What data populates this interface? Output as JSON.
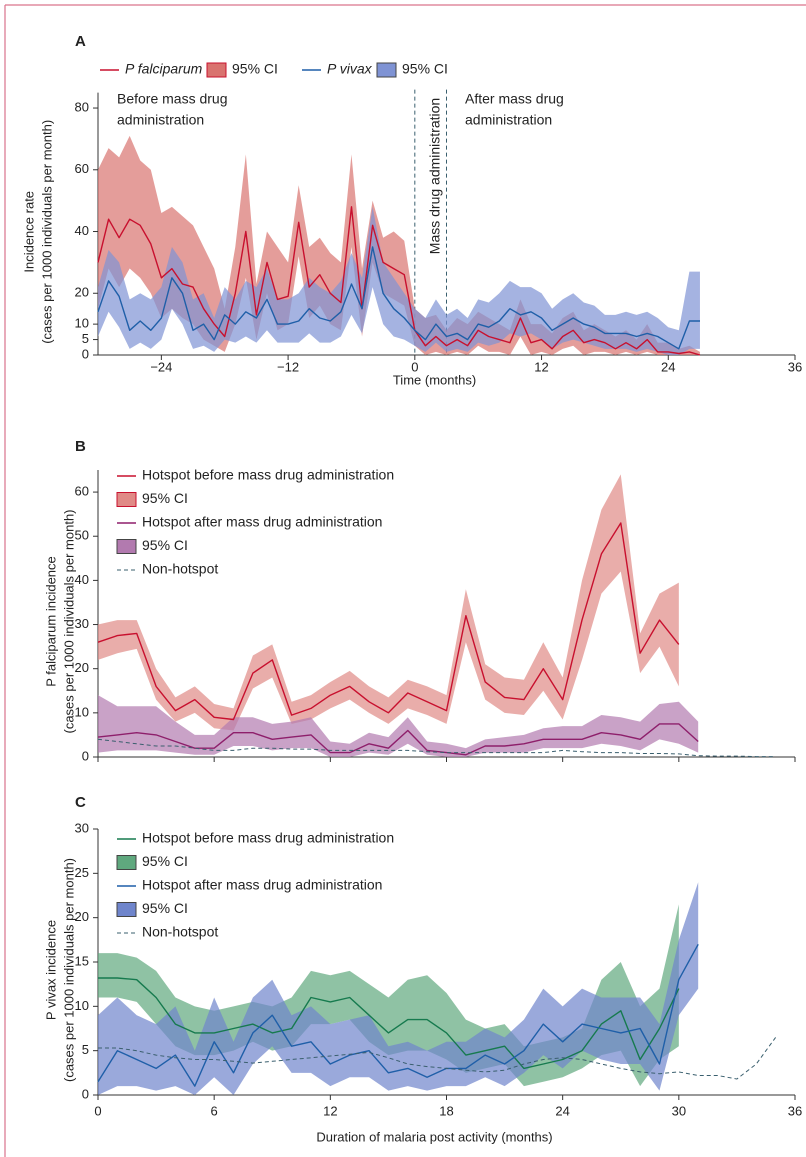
{
  "chart_data": [
    {
      "type": "line",
      "label": "A",
      "ylabel": [
        "Incidence rate",
        "(cases per 1000 individuals per month)"
      ],
      "xlabel": "Time (months)",
      "xlim": [
        -30,
        36
      ],
      "xticks": [
        {
          "value": -24,
          "label": "−24"
        },
        {
          "value": -12,
          "label": "−12"
        },
        0,
        12,
        24,
        36
      ],
      "ylim": [
        0,
        85
      ],
      "yticks": [
        0,
        5,
        10,
        20,
        40,
        60,
        80
      ],
      "legend": "row",
      "vlines": [
        0,
        3
      ],
      "annotations": [
        [
          "Before mass drug",
          "administration"
        ],
        [
          "After mass drug",
          "administration"
        ],
        [
          "Mass drug administration"
        ]
      ],
      "x": [
        -30,
        -29,
        -28,
        -27,
        -26,
        -25,
        -24,
        -23,
        -22,
        -21,
        -20,
        -19,
        -18,
        -17,
        -16,
        -15,
        -14,
        -13,
        -12,
        -11,
        -10,
        -9,
        -8,
        -7,
        -6,
        -5,
        -4,
        -3,
        -2,
        -1,
        0,
        1,
        2,
        3,
        4,
        5,
        6,
        7,
        8,
        9,
        10,
        11,
        12,
        13,
        14,
        15,
        16,
        17,
        18,
        19,
        20,
        21,
        22,
        23,
        24,
        25,
        26,
        27
      ],
      "series": [
        {
          "name": "P falciparum",
          "style": "line",
          "italic": true,
          "color": "#c8102e",
          "values": [
            30,
            44,
            38,
            44,
            42,
            36,
            25,
            28,
            23,
            22,
            15,
            10,
            6,
            20,
            40,
            13,
            30,
            18,
            19,
            43,
            22,
            26,
            20,
            17,
            48,
            15,
            42,
            30,
            28,
            26,
            8,
            3,
            6,
            3,
            5,
            3,
            8,
            6,
            5,
            4,
            12,
            4,
            5,
            2,
            6,
            8,
            4,
            5,
            4,
            2,
            4,
            2,
            5,
            1,
            1,
            0.5,
            1,
            0
          ]
        },
        {
          "name": "95% CI",
          "style": "band",
          "color": "#d9736f",
          "upper": [
            60,
            67,
            64,
            71,
            63,
            60,
            46,
            48,
            45,
            42,
            35,
            28,
            15,
            35,
            65,
            23,
            40,
            35,
            30,
            55,
            35,
            38,
            33,
            30,
            65,
            28,
            50,
            38,
            40,
            37,
            15,
            12,
            13,
            8,
            12,
            10,
            14,
            12,
            10,
            8,
            18,
            10,
            10,
            7,
            12,
            14,
            8,
            10,
            8,
            6,
            8,
            5,
            10,
            4,
            4,
            2,
            3,
            1
          ],
          "lower": [
            15,
            28,
            22,
            28,
            25,
            20,
            12,
            15,
            12,
            10,
            5,
            3,
            1,
            10,
            25,
            5,
            20,
            8,
            10,
            32,
            12,
            16,
            10,
            8,
            35,
            6,
            30,
            20,
            18,
            16,
            3,
            0,
            1,
            0,
            1,
            0,
            3,
            1,
            1,
            0,
            6,
            0,
            1,
            0,
            2,
            3,
            0,
            1,
            1,
            0,
            1,
            0,
            1,
            0,
            0,
            0,
            0,
            0
          ]
        },
        {
          "name": "P vivax",
          "style": "line",
          "italic": true,
          "color": "#1f5fa8",
          "values": [
            14,
            24,
            19,
            8,
            11,
            8,
            12,
            25,
            20,
            8,
            10,
            5,
            13,
            10,
            14,
            12,
            18,
            10,
            10,
            11,
            15,
            12,
            11,
            14,
            23,
            15,
            35,
            20,
            15,
            12,
            8,
            5,
            10,
            6,
            7,
            5,
            10,
            9,
            11,
            15,
            13,
            14,
            12,
            8,
            10,
            12,
            10,
            9,
            7,
            7,
            7,
            6,
            7,
            6,
            4,
            2,
            11,
            11
          ]
        },
        {
          "name": "95% CI",
          "style": "band",
          "color": "#7f93d4",
          "upper": [
            22,
            34,
            30,
            18,
            20,
            18,
            22,
            35,
            30,
            18,
            20,
            12,
            22,
            18,
            24,
            22,
            28,
            18,
            18,
            20,
            25,
            22,
            20,
            24,
            33,
            25,
            48,
            30,
            25,
            20,
            15,
            12,
            18,
            13,
            15,
            12,
            18,
            17,
            20,
            24,
            22,
            22,
            20,
            15,
            18,
            20,
            17,
            16,
            13,
            13,
            14,
            13,
            14,
            12,
            9,
            8,
            27,
            27
          ],
          "lower": [
            6,
            14,
            9,
            2,
            4,
            2,
            5,
            15,
            10,
            2,
            3,
            1,
            5,
            4,
            6,
            4,
            8,
            4,
            4,
            4,
            7,
            4,
            4,
            6,
            13,
            7,
            22,
            10,
            6,
            5,
            3,
            1,
            4,
            1,
            2,
            1,
            4,
            3,
            4,
            7,
            6,
            7,
            5,
            2,
            4,
            5,
            4,
            3,
            2,
            2,
            2,
            1,
            2,
            1,
            0,
            0,
            2,
            2
          ]
        }
      ]
    },
    {
      "type": "line",
      "label": "B",
      "ylabel": [
        "P falciparum incidence",
        "(cases per 1000 individuals per month)"
      ],
      "xlim": [
        0,
        36
      ],
      "xticks": [
        0,
        6,
        12,
        18,
        24,
        30,
        36
      ],
      "xtick_labels": false,
      "ylim": [
        0,
        65
      ],
      "yticks": [
        0,
        10,
        20,
        30,
        40,
        50,
        60
      ],
      "legend": "column",
      "x": [
        0,
        1,
        2,
        3,
        4,
        5,
        6,
        7,
        8,
        9,
        10,
        11,
        12,
        13,
        14,
        15,
        16,
        17,
        18,
        19,
        20,
        21,
        22,
        23,
        24,
        25,
        26,
        27,
        28,
        29,
        30,
        31,
        32,
        33,
        34,
        35
      ],
      "series": [
        {
          "name": "Hotspot before mass drug administration",
          "style": "line",
          "color": "#c8102e",
          "values": [
            26,
            27.5,
            28,
            16,
            10.5,
            13,
            9,
            8.5,
            19,
            22,
            9.5,
            11,
            14,
            16,
            12.5,
            10,
            14.5,
            12.5,
            10.5,
            32,
            17,
            13.5,
            13,
            20,
            13,
            31,
            46,
            53,
            23.5,
            31,
            25.5,
            null,
            null,
            null,
            null,
            null
          ]
        },
        {
          "name": "95% CI",
          "style": "band",
          "color": "#e08a86",
          "upper": [
            30,
            31,
            31,
            20,
            13.5,
            16,
            12,
            11,
            23,
            25.5,
            12.5,
            14,
            17,
            19.5,
            16,
            13.5,
            17.5,
            16,
            14,
            38,
            21,
            18,
            17.5,
            26,
            18,
            40,
            56,
            64,
            28,
            37,
            39.5,
            null,
            null,
            null,
            null,
            null
          ],
          "lower": [
            22,
            23.5,
            24.5,
            13,
            8,
            10,
            6.5,
            6,
            15.5,
            18,
            7.5,
            8.5,
            11,
            13,
            10,
            7.5,
            11,
            9.5,
            7.5,
            26,
            13,
            10,
            9.5,
            15,
            8.5,
            22,
            37,
            42,
            19,
            25,
            16,
            null,
            null,
            null,
            null,
            null
          ]
        },
        {
          "name": "Hotspot after mass drug administration",
          "style": "line",
          "color": "#8e1f6b",
          "values": [
            4.5,
            5,
            5.5,
            5,
            3.5,
            2,
            2,
            5.5,
            5.5,
            4,
            4.5,
            5,
            1,
            1,
            3,
            2,
            6,
            1.5,
            1,
            0.5,
            2.5,
            2.5,
            3,
            4,
            4,
            4,
            5.5,
            5,
            4,
            7.5,
            7.5,
            3.5,
            null,
            null,
            null,
            null
          ]
        },
        {
          "name": "95% CI",
          "style": "band",
          "color": "#b27aaf",
          "upper": [
            14,
            11.5,
            11.5,
            11.5,
            8,
            5,
            5,
            9,
            9,
            7.5,
            8,
            9,
            3.5,
            3,
            5.5,
            4.5,
            9,
            3.5,
            3,
            2,
            4,
            4.5,
            5,
            6.5,
            7,
            7,
            9.5,
            9,
            8,
            12,
            12.5,
            8,
            null,
            null,
            null,
            null
          ],
          "lower": [
            1,
            1.5,
            1.5,
            1.5,
            1,
            0.5,
            0.5,
            2.5,
            2.5,
            1.5,
            2,
            2,
            0,
            0,
            1,
            0.5,
            3,
            0.5,
            0,
            0,
            1,
            1,
            1,
            2,
            2,
            2,
            3,
            2.5,
            1.5,
            4,
            3,
            1,
            null,
            null,
            null,
            null
          ]
        },
        {
          "name": "Non-hotspot",
          "style": "dashed",
          "color": "#3a5f6e",
          "values": [
            4,
            3.5,
            3,
            2.5,
            2.5,
            2,
            1.5,
            1.5,
            2,
            2,
            1.8,
            1.8,
            1.5,
            1.5,
            1.5,
            1.5,
            1.5,
            1.2,
            1,
            1,
            1,
            1,
            1,
            1,
            1.5,
            1.2,
            1,
            1,
            0.8,
            0.8,
            0.7,
            0.3,
            0.2,
            0.2,
            0.1,
            0.1
          ]
        }
      ]
    },
    {
      "type": "line",
      "label": "C",
      "ylabel": [
        "P vivax incidence",
        "(cases per 1000 individuals per month)"
      ],
      "xlabel": "Duration of malaria post activity (months)",
      "xlim": [
        0,
        36
      ],
      "xticks": [
        0,
        6,
        12,
        18,
        24,
        30,
        36
      ],
      "ylim": [
        0,
        30
      ],
      "yticks": [
        0,
        5,
        10,
        15,
        20,
        25,
        30
      ],
      "legend": "column",
      "x": [
        0,
        1,
        2,
        3,
        4,
        5,
        6,
        7,
        8,
        9,
        10,
        11,
        12,
        13,
        14,
        15,
        16,
        17,
        18,
        19,
        20,
        21,
        22,
        23,
        24,
        25,
        26,
        27,
        28,
        29,
        30,
        31,
        32,
        33,
        34,
        35
      ],
      "series": [
        {
          "name": "Hotspot before mass drug administration",
          "style": "line",
          "color": "#167a4e",
          "values": [
            13.2,
            13.2,
            13,
            11,
            8,
            7,
            7,
            7.5,
            8,
            7,
            7.5,
            11,
            10.5,
            11,
            9,
            7,
            8.5,
            8.5,
            7,
            4.5,
            5,
            5.5,
            3,
            3.5,
            4,
            5,
            8,
            9.5,
            4,
            7.5,
            12,
            null,
            null,
            null,
            null,
            null
          ]
        },
        {
          "name": "95% CI",
          "style": "band",
          "color": "#5fa87e",
          "upper": [
            16,
            16,
            15.5,
            14,
            11,
            10,
            9.5,
            10,
            10.5,
            10,
            11,
            14,
            13.5,
            14,
            12.5,
            11,
            13,
            13.5,
            11.5,
            8.5,
            7.5,
            8,
            5.5,
            6,
            6.5,
            7.5,
            13,
            15,
            10,
            12,
            21.5,
            null,
            null,
            null,
            null,
            null
          ],
          "lower": [
            11,
            11,
            10.5,
            8,
            5.5,
            4.5,
            4.5,
            5,
            6,
            5,
            5.5,
            8,
            8,
            8.5,
            6,
            4.5,
            5,
            5,
            4,
            2.5,
            3,
            3.5,
            1,
            1.5,
            2,
            3,
            4.5,
            5,
            1,
            4,
            5.5,
            null,
            null,
            null,
            null,
            null
          ]
        },
        {
          "name": "Hotspot after mass drug administration",
          "style": "line",
          "color": "#1f5fa8",
          "values": [
            1.5,
            5,
            4,
            3,
            4.5,
            1,
            6,
            2.5,
            7,
            9,
            5.5,
            6,
            3.5,
            4.5,
            5,
            2.5,
            3,
            2,
            3,
            3,
            4.5,
            3.5,
            5,
            8,
            6,
            8,
            7.5,
            7,
            7.5,
            3.5,
            13,
            17,
            null,
            null,
            null,
            null
          ]
        },
        {
          "name": "95% CI",
          "style": "band",
          "color": "#6f85cc",
          "upper": [
            9,
            11,
            9,
            8,
            10,
            5,
            11,
            6,
            11,
            13,
            9,
            10,
            8,
            8.5,
            9,
            5.5,
            6,
            5,
            6,
            6,
            7.5,
            6.5,
            8.5,
            12,
            10,
            12,
            11,
            11,
            11,
            8,
            17.5,
            24,
            null,
            null,
            null,
            null
          ],
          "lower": [
            0,
            1,
            1,
            0.5,
            1,
            0,
            2,
            0,
            3.5,
            5.5,
            2.5,
            2.5,
            1,
            2,
            2,
            0.5,
            1,
            0.5,
            1,
            1,
            2,
            1,
            2.5,
            4.5,
            3,
            5,
            4,
            3.5,
            3.5,
            0.5,
            9,
            12,
            null,
            null,
            null,
            null
          ]
        },
        {
          "name": "Non-hotspot",
          "style": "dashed",
          "color": "#3a5f6e",
          "values": [
            5.3,
            5.3,
            5,
            4.5,
            4.2,
            4,
            4,
            3.8,
            3.6,
            3.8,
            4,
            4.2,
            4.4,
            4.6,
            4.8,
            4.2,
            3.5,
            3.2,
            3,
            2.8,
            2.6,
            2.8,
            3.5,
            4,
            4.2,
            4,
            3.5,
            3,
            2.6,
            2.4,
            2.6,
            2.2,
            2.2,
            1.8,
            3.5,
            6.5
          ]
        }
      ]
    }
  ]
}
